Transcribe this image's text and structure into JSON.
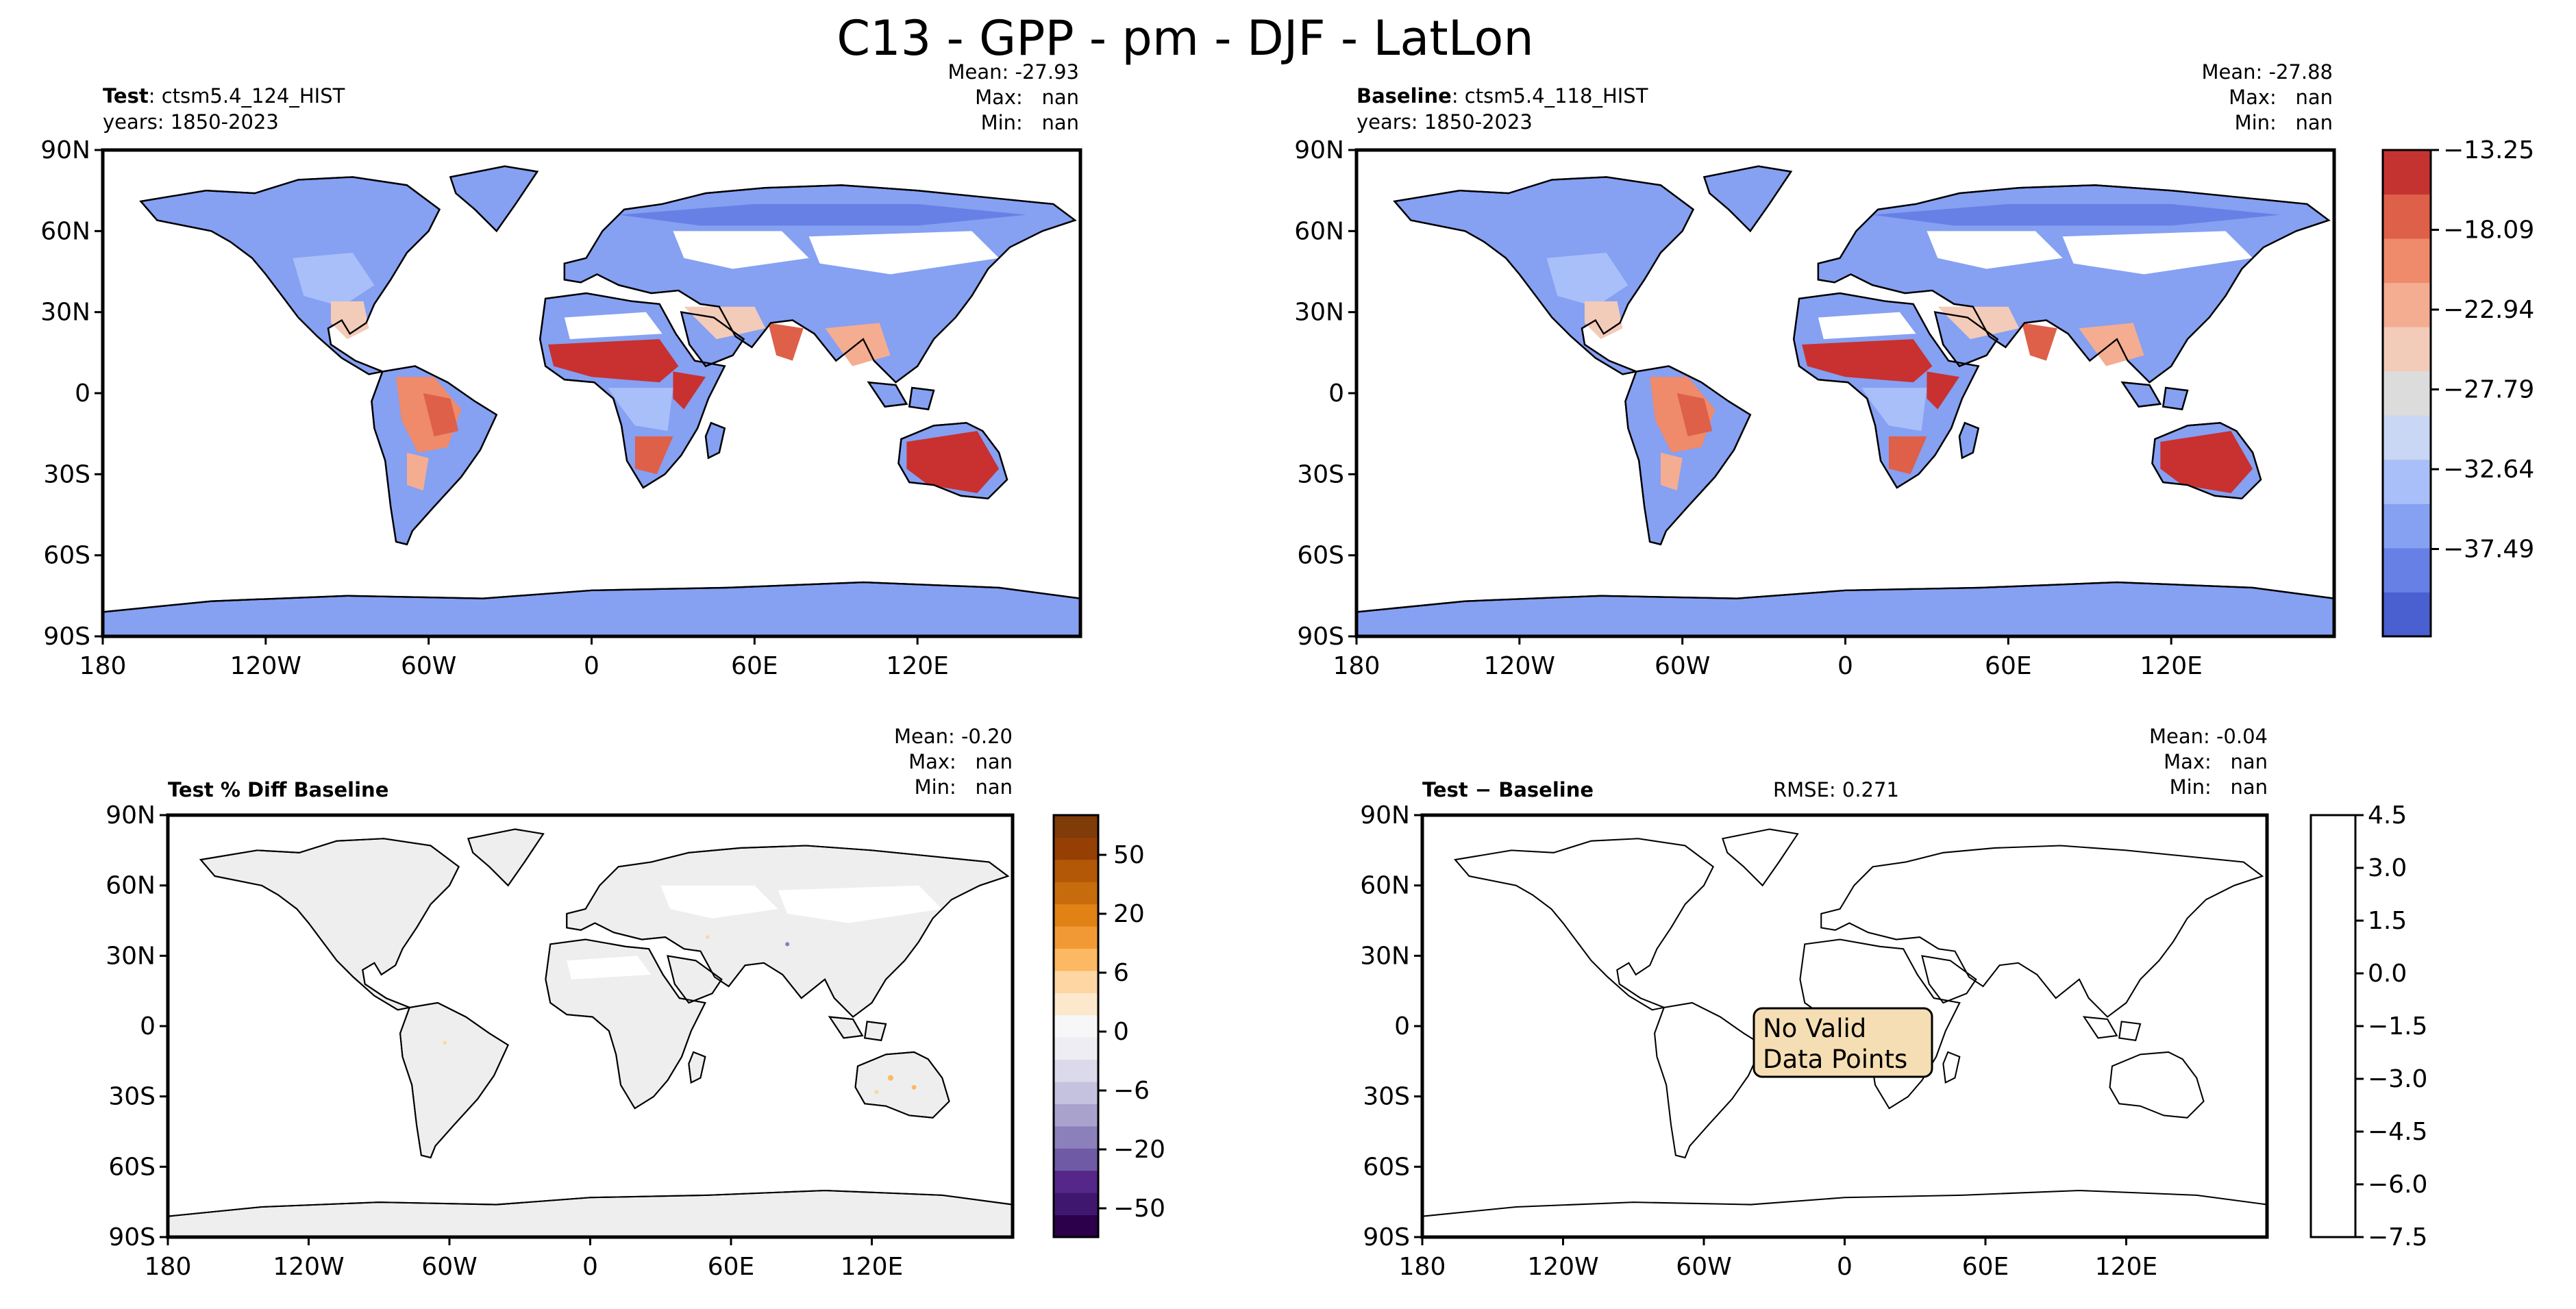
{
  "figure_title": "C13 - GPP - pm - DJF - LatLon",
  "lat_ticks": [
    "90N",
    "60N",
    "30N",
    "0",
    "30S",
    "60S",
    "90S"
  ],
  "lon_ticks": [
    "180",
    "120W",
    "60W",
    "0",
    "60E",
    "120E"
  ],
  "panels": {
    "test": {
      "title_bold": "Test",
      "title_rest": ": ctsm5.4_124_HIST",
      "years": "years: 1850-2023",
      "stats": [
        "Mean: -27.93",
        "Max:   nan",
        "Min:   nan"
      ]
    },
    "baseline": {
      "title_bold": "Baseline",
      "title_rest": ": ctsm5.4_118_HIST",
      "years": "years: 1850-2023",
      "stats": [
        "Mean: -27.88",
        "Max:   nan",
        "Min:   nan"
      ]
    },
    "pctdiff": {
      "title_bold": "Test % Diff Baseline",
      "stats": [
        "Mean: -0.20",
        "Max:   nan",
        "Min:   nan"
      ]
    },
    "diff": {
      "title_bold": "Test − Baseline",
      "rmse": "RMSE: 0.271",
      "stats": [
        "Mean: -0.04",
        "Max:   nan",
        "Min:   nan"
      ],
      "no_data_line1": "No Valid",
      "no_data_line2": "Data Points",
      "no_data_fill": "#f5deb3"
    }
  },
  "colorbars": {
    "main": {
      "labels": [
        "−13.25",
        "−18.09",
        "−22.94",
        "−27.79",
        "−32.64",
        "−37.49"
      ],
      "colors": [
        "#4a5fd0",
        "#6780e6",
        "#86a0f2",
        "#a9bff9",
        "#c9d6f4",
        "#dcdcdc",
        "#f3cbb9",
        "#f4ad91",
        "#ef8a6a",
        "#de6049",
        "#c53331"
      ]
    },
    "pct": {
      "labels": [
        "50",
        "20",
        "6",
        "0",
        "−6",
        "−20",
        "−50"
      ],
      "colors": [
        "#2d004b",
        "#40176e",
        "#542788",
        "#6f5aa5",
        "#8c80ba",
        "#a9a2cc",
        "#c5c2df",
        "#dcdaea",
        "#eeedf4",
        "#f7f7f7",
        "#fce8cd",
        "#fdd6a3",
        "#fdb863",
        "#f19a35",
        "#e08214",
        "#c86b0c",
        "#b35806",
        "#953f05",
        "#7f3b08"
      ]
    },
    "diff": {
      "labels": [
        "4.5",
        "3.0",
        "1.5",
        "0.0",
        "−1.5",
        "−3.0",
        "−4.5",
        "−6.0",
        "−7.5"
      ]
    }
  },
  "palette": {
    "red": "#c8312f",
    "orange": "#ef8a6a",
    "salmon": "#f4ad91",
    "pale_red": "#f3cbb9",
    "grey": "#dcdcdc",
    "pale_blue": "#c9d6f4",
    "light_blue": "#a9bff9",
    "blue": "#86a0f2",
    "mid_blue": "#7f9af0",
    "pct_land": "#eeeeee"
  }
}
